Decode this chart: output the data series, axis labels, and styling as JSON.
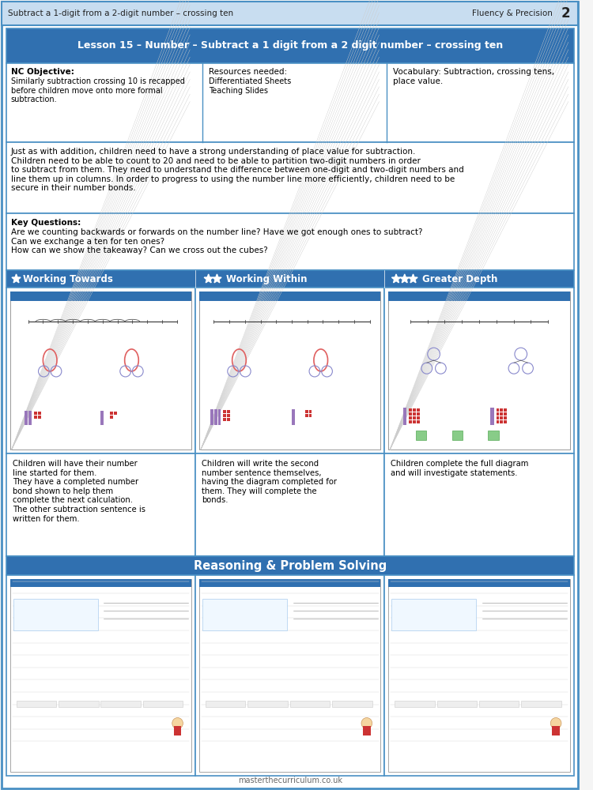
{
  "page_bg": "#f5f5f5",
  "outer_border_color": "#4a90c4",
  "header_bg": "#c8ddf0",
  "header_left": "Subtract a 1-digit from a 2-digit number – crossing ten",
  "header_right": "Fluency & Precision",
  "header_num": "2",
  "blue_banner_bg": "#3070b0",
  "lesson_title": "Lesson 15 – Number – Subtract a 1 digit from a 2 digit number – crossing ten",
  "nc_objective_title": "NC Objective:",
  "nc_objective_body": "Similarly subtraction crossing 10 is recapped\nbefore children move onto more formal\nsubtraction.",
  "resources_title": "Resources needed:",
  "resources_body": "Differentiated Sheets\nTeaching Slides",
  "vocab_text": "Vocabulary: Subtraction, crossing tens,\nplace value.",
  "body_text": "Just as with addition, children need to have a strong understanding of place value for subtraction.\nChildren need to be able to count to 20 and need to be able to partition two-digit numbers in order\nto subtract from them. They need to understand the difference between one-digit and two-digit numbers and\nline them up in columns. In order to progress to using the number line more efficiently, children need to be\nsecure in their number bonds.",
  "key_questions_title": "Key Questions:",
  "key_questions_body": "Are we counting backwards or forwards on the number line? Have we got enough ones to subtract?\nCan we exchange a ten for ten ones?\nHow can we show the takeaway? Can we cross out the cubes?",
  "working_towards": "Working Towards",
  "working_within": "Working Within",
  "greater_depth": "Greater Depth",
  "wt_desc": "Children will have their number\nline started for them.\nThey have a completed number\nbond shown to help them\ncomplete the next calculation.\nThe other subtraction sentence is\nwritten for them.",
  "ww_desc": "Children will write the second\nnumber sentence themselves,\nhaving the diagram completed for\nthem. They will complete the\nbonds.",
  "gd_desc": "Children complete the full diagram\nand will investigate statements.",
  "reasoning_title": "Reasoning & Problem Solving",
  "footer_text": "masterthecurriculum.co.uk",
  "border_color": "#4a90c4",
  "thumb_border": "#aaaaaa",
  "thumb_bg": "#ffffff",
  "thumb_header_bg": "#3070b0",
  "thumb_line_color": "#cccccc",
  "red_cube": "#cc3333",
  "purple_cube": "#8855aa",
  "green_card": "#88cc88",
  "number_line_color": "#333333"
}
